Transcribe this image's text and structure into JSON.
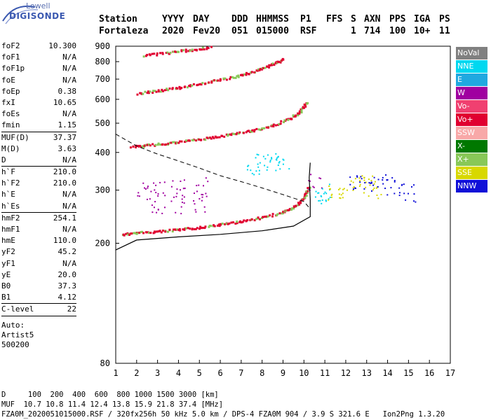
{
  "logo": {
    "line1": "Lowell",
    "line2": "DIGISONDE"
  },
  "header": {
    "labels": [
      "Station",
      "YYYY",
      "DAY",
      "DDD",
      "HHMMSS",
      "P1",
      "FFS",
      "S",
      "AXN",
      "PPS",
      "IGA",
      "PS"
    ],
    "values": [
      "Fortaleza",
      "2020",
      "Fev20",
      "051",
      "015000",
      "RSF",
      "1",
      "714",
      "100",
      "10+",
      "11"
    ]
  },
  "params": {
    "group1": [
      {
        "k": "foF2",
        "v": "10.300"
      },
      {
        "k": "foF1",
        "v": "N/A"
      },
      {
        "k": "foF1p",
        "v": "N/A"
      },
      {
        "k": "foE",
        "v": "N/A"
      },
      {
        "k": "foEp",
        "v": "0.38"
      },
      {
        "k": "fxI",
        "v": "10.65"
      },
      {
        "k": "foEs",
        "v": "N/A"
      },
      {
        "k": "fmin",
        "v": "1.15"
      }
    ],
    "group2": [
      {
        "k": "MUF(D)",
        "v": "37.37"
      },
      {
        "k": "M(D)",
        "v": "3.63"
      },
      {
        "k": "D",
        "v": "N/A"
      }
    ],
    "group3": [
      {
        "k": "h`F",
        "v": "210.0"
      },
      {
        "k": "h`F2",
        "v": "210.0"
      },
      {
        "k": "h`E",
        "v": "N/A"
      },
      {
        "k": "h`Es",
        "v": "N/A"
      }
    ],
    "group4": [
      {
        "k": "hmF2",
        "v": "254.1"
      },
      {
        "k": "hmF1",
        "v": "N/A"
      },
      {
        "k": "hmE",
        "v": "110.0"
      },
      {
        "k": "yF2",
        "v": "45.2"
      },
      {
        "k": "yF1",
        "v": "N/A"
      },
      {
        "k": "yE",
        "v": "20.0"
      },
      {
        "k": "B0",
        "v": "37.3"
      },
      {
        "k": "B1",
        "v": "4.12"
      }
    ],
    "group5": [
      {
        "k": "C-level",
        "v": "22"
      }
    ],
    "auto": [
      "Auto:",
      "Artist5",
      "500200"
    ]
  },
  "legend": [
    {
      "label": "NoVal",
      "color": "#808080",
      "text": "#ffffff"
    },
    {
      "label": "NNE",
      "color": "#00d8f0",
      "text": "#ffffff"
    },
    {
      "label": "E",
      "color": "#20a8e0",
      "text": "#ffffff"
    },
    {
      "label": "W",
      "color": "#a000a0",
      "text": "#ffffff"
    },
    {
      "label": "Vo-",
      "color": "#f04070",
      "text": "#ffffff"
    },
    {
      "label": "Vo+",
      "color": "#e00030",
      "text": "#ffffff"
    },
    {
      "label": "SSW",
      "color": "#f8a8a8",
      "text": "#ffffff"
    },
    {
      "label": "X-",
      "color": "#007800",
      "text": "#ffffff"
    },
    {
      "label": "X+",
      "color": "#88c858",
      "text": "#ffffff"
    },
    {
      "label": "SSE",
      "color": "#d8d800",
      "text": "#ffffff"
    },
    {
      "label": "NNW",
      "color": "#1010d8",
      "text": "#ffffff"
    }
  ],
  "chart_data": {
    "type": "scatter",
    "title": "",
    "xlabel": "",
    "ylabel": "",
    "xlim": [
      1,
      17
    ],
    "ylim": [
      80,
      900
    ],
    "xticks": [
      "1",
      "2",
      "3",
      "4",
      "5",
      "6",
      "7",
      "8",
      "9",
      "10",
      "11",
      "12",
      "13",
      "14",
      "15",
      "16",
      "17"
    ],
    "yticks": [
      "80",
      "200",
      "300",
      "400",
      "500",
      "600",
      "700",
      "800",
      "900"
    ],
    "yscale": "log",
    "grid": false,
    "series": [
      {
        "color": "#e00030",
        "points": [
          [
            1.3,
            215
          ],
          [
            2,
            218
          ],
          [
            3,
            220
          ],
          [
            4,
            223
          ],
          [
            5,
            227
          ],
          [
            6,
            232
          ],
          [
            7,
            238
          ],
          [
            8,
            245
          ],
          [
            9,
            255
          ],
          [
            9.5,
            265
          ],
          [
            10,
            285
          ],
          [
            10.2,
            310
          ]
        ]
      },
      {
        "color": "#e00030",
        "points": [
          [
            1.7,
            420
          ],
          [
            2.5,
            425
          ],
          [
            3.5,
            432
          ],
          [
            4.5,
            440
          ],
          [
            5.5,
            450
          ],
          [
            6.5,
            462
          ],
          [
            7.5,
            475
          ],
          [
            8.5,
            495
          ],
          [
            9.3,
            520
          ],
          [
            9.8,
            550
          ],
          [
            10.1,
            590
          ]
        ]
      },
      {
        "color": "#e00030",
        "points": [
          [
            2,
            630
          ],
          [
            3,
            645
          ],
          [
            4,
            660
          ],
          [
            5,
            680
          ],
          [
            6,
            700
          ],
          [
            7,
            725
          ],
          [
            7.8,
            755
          ],
          [
            8.5,
            790
          ],
          [
            9,
            820
          ]
        ]
      },
      {
        "color": "#e00030",
        "points": [
          [
            2.3,
            845
          ],
          [
            3.5,
            860
          ],
          [
            4.5,
            880
          ],
          [
            5.5,
            895
          ]
        ]
      },
      {
        "color": "#a000a0",
        "points": [
          [
            2.3,
            300
          ],
          [
            3,
            300
          ],
          [
            4,
            305
          ],
          [
            5,
            310
          ],
          [
            10.5,
            320
          ],
          [
            3,
            270
          ],
          [
            4,
            270
          ],
          [
            5,
            270
          ]
        ]
      },
      {
        "color": "#00d8f0",
        "points": [
          [
            7.5,
            360
          ],
          [
            8,
            370
          ],
          [
            8.5,
            375
          ],
          [
            9,
            365
          ],
          [
            10.8,
            290
          ],
          [
            11,
            295
          ]
        ]
      },
      {
        "color": "#d8d800",
        "points": [
          [
            11.5,
            290
          ],
          [
            12,
            300
          ],
          [
            12.5,
            310
          ],
          [
            13,
            315
          ],
          [
            13.3,
            300
          ]
        ]
      },
      {
        "color": "#1010d8",
        "points": [
          [
            12.5,
            320
          ],
          [
            13,
            320
          ],
          [
            13.8,
            320
          ],
          [
            14.3,
            310
          ],
          [
            15,
            295
          ]
        ]
      }
    ],
    "profile_solid": [
      [
        1,
        190
      ],
      [
        2,
        205
      ],
      [
        4,
        210
      ],
      [
        6,
        214
      ],
      [
        8,
        220
      ],
      [
        9.5,
        228
      ],
      [
        10.3,
        245
      ],
      [
        10.3,
        280
      ],
      [
        10.25,
        330
      ],
      [
        10.3,
        370
      ]
    ],
    "profile_dashed": [
      [
        1,
        460
      ],
      [
        2,
        420
      ],
      [
        3,
        395
      ],
      [
        4,
        375
      ],
      [
        5,
        355
      ],
      [
        6,
        335
      ],
      [
        7,
        320
      ],
      [
        8,
        305
      ],
      [
        9,
        290
      ],
      [
        10,
        275
      ],
      [
        10.3,
        260
      ]
    ]
  },
  "footer": {
    "line1": "D     100  200  400  600  800 1000 1500 3000 [km]",
    "line2": "MUF  10.7 10.8 11.4 12.4 13.8 15.9 21.8 37.4 [MHz]",
    "line3": "FZA0M_2020051015000.RSF / 320fx256h 50 kHz 5.0 km / DPS-4 FZA0M 904 / 3.9 S 321.6 E   Ion2Png 1.3.20"
  }
}
